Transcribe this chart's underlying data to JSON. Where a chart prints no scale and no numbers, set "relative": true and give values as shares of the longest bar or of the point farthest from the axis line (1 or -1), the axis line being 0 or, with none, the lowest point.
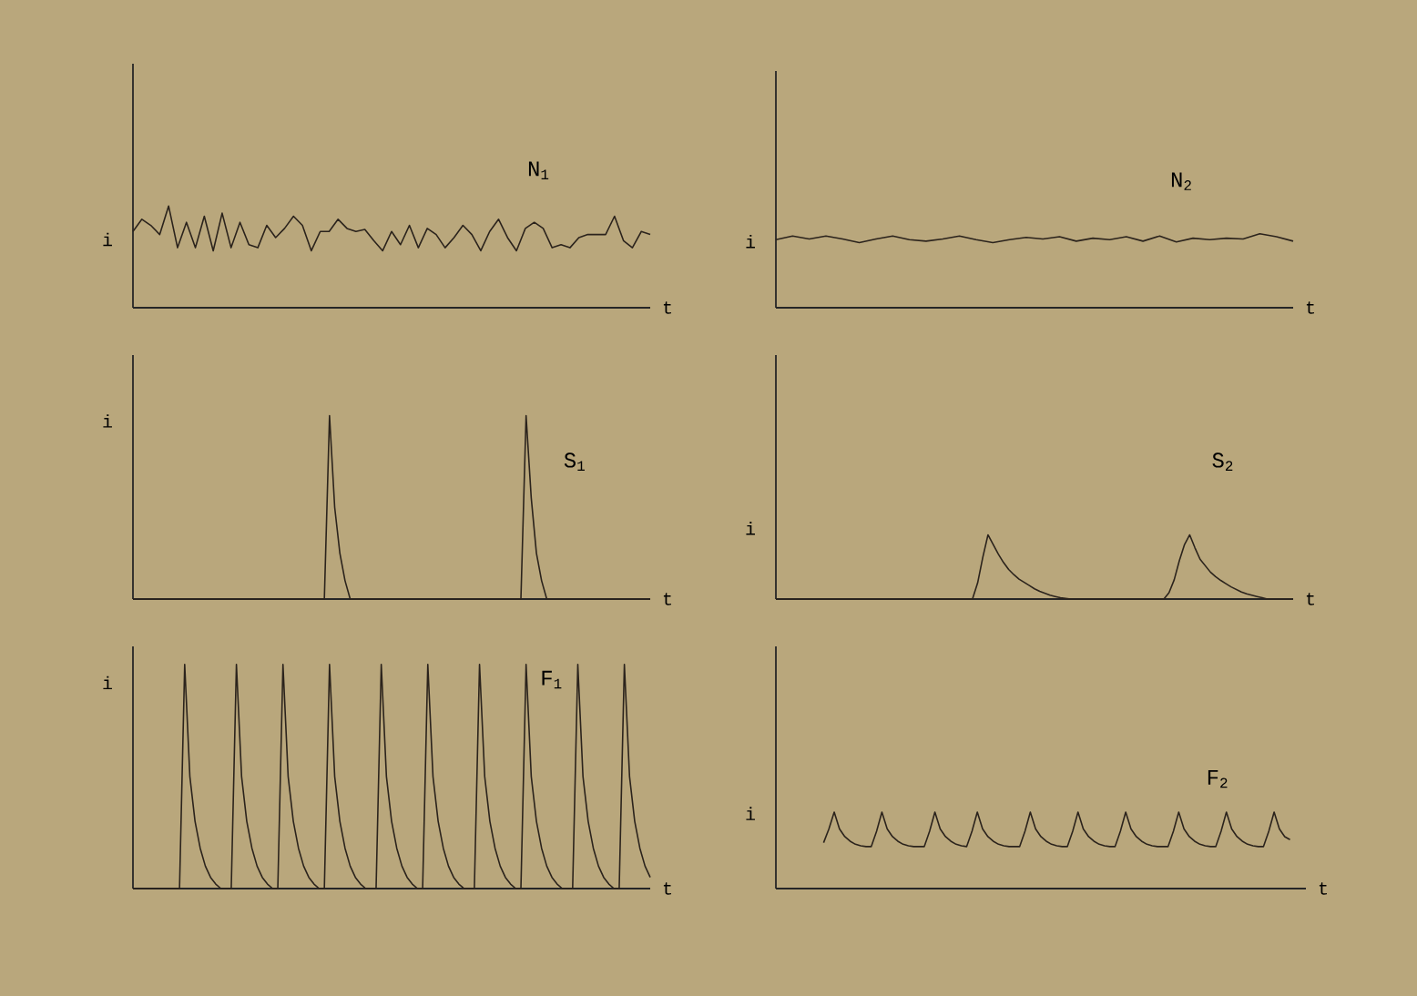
{
  "chart_data": [
    {
      "type": "line",
      "relative": true,
      "tick_labels": false,
      "xlabel": "t",
      "ylabel": "i",
      "categories": [
        null,
        null,
        null,
        null,
        null,
        null,
        null,
        null,
        null,
        null,
        null,
        null,
        null,
        null,
        null,
        null,
        null,
        null,
        null,
        null,
        null,
        null,
        null,
        null,
        null,
        null,
        null,
        null,
        null,
        null,
        null,
        null,
        null,
        null,
        null,
        null,
        null,
        null,
        null,
        null,
        null,
        null,
        null,
        null,
        null,
        null,
        null,
        null,
        null,
        null,
        null,
        null,
        null,
        null,
        null,
        null,
        null,
        null,
        null
      ],
      "series": [
        {
          "name": "N$_{1}$",
          "color": "#2b231c",
          "values": [
            0.75,
            0.87,
            0.81,
            0.72,
            1.0,
            0.59,
            0.84,
            0.59,
            0.9,
            0.56,
            0.93,
            0.59,
            0.84,
            0.62,
            0.59,
            0.81,
            0.69,
            0.78,
            0.9,
            0.81,
            0.56,
            0.75,
            0.75,
            0.87,
            0.78,
            0.75,
            0.77,
            0.66,
            0.56,
            0.75,
            0.62,
            0.81,
            0.59,
            0.78,
            0.72,
            0.59,
            0.69,
            0.81,
            0.72,
            0.56,
            0.75,
            0.87,
            0.69,
            0.56,
            0.78,
            0.84,
            0.78,
            0.59,
            0.62,
            0.59,
            0.69,
            0.72,
            0.72,
            0.72,
            0.9,
            0.66,
            0.59,
            0.75,
            0.72
          ]
        }
      ]
    },
    {
      "type": "line",
      "relative": true,
      "tick_labels": false,
      "xlabel": "t",
      "ylabel": "i",
      "categories": [
        null,
        null,
        null,
        null,
        null,
        null,
        null,
        null,
        null,
        null,
        null,
        null,
        null,
        null,
        null,
        null,
        null,
        null,
        null,
        null,
        null,
        null,
        null,
        null,
        null,
        null,
        null,
        null,
        null,
        null,
        null,
        null
      ],
      "series": [
        {
          "name": "N$_{2}$",
          "color": "#2b231c",
          "values": [
            0.92,
            0.97,
            0.93,
            0.97,
            0.93,
            0.88,
            0.93,
            0.97,
            0.92,
            0.9,
            0.93,
            0.97,
            0.92,
            0.88,
            0.92,
            0.95,
            0.93,
            0.96,
            0.9,
            0.94,
            0.92,
            0.96,
            0.9,
            0.97,
            0.89,
            0.94,
            0.92,
            0.94,
            0.93,
            1.0,
            0.96,
            0.9
          ]
        }
      ]
    },
    {
      "type": "line",
      "relative": true,
      "tick_labels": false,
      "xlabel": "t",
      "ylabel": "i",
      "categories": [
        null,
        null,
        null,
        null,
        null,
        null,
        null,
        null,
        null,
        null,
        null,
        null,
        null,
        null,
        null,
        null,
        null,
        null,
        null,
        null,
        null,
        null,
        null,
        null,
        null,
        null,
        null,
        null,
        null,
        null,
        null,
        null,
        null,
        null,
        null,
        null,
        null,
        null,
        null,
        null,
        null,
        null,
        null,
        null,
        null,
        null,
        null,
        null,
        null,
        null,
        null,
        null,
        null,
        null,
        null,
        null,
        null,
        null,
        null,
        null,
        null,
        null,
        null,
        null,
        null,
        null,
        null,
        null,
        null,
        null,
        null,
        null,
        null,
        null,
        null,
        null,
        null,
        null,
        null,
        null,
        null,
        null,
        null,
        null,
        null,
        null,
        null,
        null,
        null,
        null,
        null,
        null,
        null,
        null,
        null,
        null,
        null,
        null,
        null,
        null,
        null
      ],
      "series": [
        {
          "name": "S$_{1}$",
          "color": "#2b231c",
          "values": [
            0,
            0,
            0,
            0,
            0,
            0,
            0,
            0,
            0,
            0,
            0,
            0,
            0,
            0,
            0,
            0,
            0,
            0,
            0,
            0,
            0,
            0,
            0,
            0,
            0,
            0,
            0,
            0,
            0,
            0,
            0,
            0,
            0,
            0,
            0,
            0,
            0,
            0,
            1,
            0.5,
            0.25,
            0.1,
            0,
            0,
            0,
            0,
            0,
            0,
            0,
            0,
            0,
            0,
            0,
            0,
            0,
            0,
            0,
            0,
            0,
            0,
            0,
            0,
            0,
            0,
            0,
            0,
            0,
            0,
            0,
            0,
            0,
            0,
            0,
            0,
            0,
            0,
            1,
            0.55,
            0.25,
            0.1,
            0,
            0,
            0,
            0,
            0,
            0,
            0,
            0,
            0,
            0,
            0,
            0,
            0,
            0,
            0,
            0,
            0,
            0,
            0,
            0,
            0
          ]
        }
      ]
    },
    {
      "type": "line",
      "relative": true,
      "tick_labels": false,
      "xlabel": "t",
      "ylabel": "i",
      "categories": [
        null,
        null,
        null,
        null,
        null,
        null,
        null,
        null,
        null,
        null,
        null,
        null,
        null,
        null,
        null,
        null,
        null,
        null,
        null,
        null,
        null,
        null,
        null,
        null,
        null,
        null,
        null,
        null,
        null,
        null,
        null,
        null,
        null,
        null,
        null,
        null,
        null,
        null,
        null,
        null,
        null,
        null,
        null,
        null,
        null,
        null,
        null,
        null,
        null,
        null,
        null,
        null,
        null,
        null,
        null,
        null,
        null,
        null,
        null,
        null,
        null,
        null,
        null,
        null,
        null,
        null,
        null,
        null,
        null,
        null,
        null,
        null,
        null,
        null,
        null,
        null,
        null,
        null,
        null,
        null,
        null,
        null,
        null,
        null,
        null,
        null,
        null,
        null,
        null,
        null,
        null,
        null,
        null,
        null,
        null,
        null,
        null,
        null,
        null,
        null,
        null
      ],
      "series": [
        {
          "name": "S$_{2}$",
          "color": "#2b231c",
          "values": [
            0,
            0,
            0,
            0,
            0,
            0,
            0,
            0,
            0,
            0,
            0,
            0,
            0,
            0,
            0,
            0,
            0,
            0,
            0,
            0,
            0,
            0,
            0,
            0,
            0,
            0,
            0,
            0,
            0,
            0,
            0,
            0,
            0,
            0,
            0,
            0,
            0,
            0,
            0,
            0.25,
            0.65,
            1,
            0.85,
            0.7,
            0.57,
            0.46,
            0.38,
            0.31,
            0.26,
            0.21,
            0.16,
            0.12,
            0.09,
            0.06,
            0.04,
            0.02,
            0.01,
            0,
            0,
            0,
            0,
            0,
            0,
            0,
            0,
            0,
            0,
            0,
            0,
            0,
            0,
            0,
            0,
            0,
            0,
            0,
            0.1,
            0.3,
            0.6,
            0.85,
            1,
            0.8,
            0.62,
            0.52,
            0.42,
            0.35,
            0.29,
            0.24,
            0.19,
            0.15,
            0.11,
            0.08,
            0.06,
            0.04,
            0.02,
            0,
            0,
            0,
            0,
            0,
            0
          ]
        }
      ]
    },
    {
      "type": "line",
      "relative": true,
      "tick_labels": false,
      "xlabel": "t",
      "ylabel": "i",
      "categories": [
        null,
        null,
        null,
        null,
        null,
        null,
        null,
        null,
        null,
        null,
        null,
        null,
        null,
        null,
        null,
        null,
        null,
        null,
        null,
        null,
        null,
        null,
        null,
        null,
        null,
        null,
        null,
        null,
        null,
        null,
        null,
        null,
        null,
        null,
        null,
        null,
        null,
        null,
        null,
        null,
        null,
        null,
        null,
        null,
        null,
        null,
        null,
        null,
        null,
        null,
        null,
        null,
        null,
        null,
        null,
        null,
        null,
        null,
        null,
        null,
        null,
        null,
        null,
        null,
        null,
        null,
        null,
        null,
        null,
        null,
        null,
        null,
        null,
        null,
        null,
        null,
        null,
        null,
        null,
        null,
        null,
        null,
        null,
        null,
        null,
        null,
        null,
        null,
        null,
        null,
        null,
        null,
        null,
        null,
        null,
        null,
        null,
        null,
        null,
        null,
        null
      ],
      "series": [
        {
          "name": "F$_{1}$",
          "color": "#2b231c",
          "values": [
            0,
            0,
            0,
            0,
            0,
            0,
            0,
            0,
            0,
            0,
            1,
            0.5,
            0.3,
            0.18,
            0.1,
            0.05,
            0.02,
            0,
            0,
            0,
            1,
            0.5,
            0.3,
            0.18,
            0.1,
            0.05,
            0.02,
            0,
            0,
            1,
            0.5,
            0.3,
            0.18,
            0.1,
            0.05,
            0.02,
            0,
            0,
            1,
            0.5,
            0.3,
            0.18,
            0.1,
            0.05,
            0.02,
            0,
            0,
            0,
            1,
            0.5,
            0.3,
            0.18,
            0.1,
            0.05,
            0.02,
            0,
            0,
            1,
            0.5,
            0.3,
            0.18,
            0.1,
            0.05,
            0.02,
            0,
            0,
            0,
            1,
            0.5,
            0.3,
            0.18,
            0.1,
            0.05,
            0.02,
            0,
            0,
            1,
            0.5,
            0.3,
            0.18,
            0.1,
            0.05,
            0.02,
            0,
            0,
            0,
            1,
            0.5,
            0.3,
            0.18,
            0.1,
            0.05,
            0.02,
            0,
            0,
            1,
            0.5,
            0.3,
            0.18,
            0.1,
            0.05
          ]
        }
      ]
    },
    {
      "type": "line",
      "relative": true,
      "tick_labels": false,
      "xlabel": "t",
      "ylabel": "i",
      "categories": [
        null,
        null,
        null,
        null,
        null,
        null,
        null,
        null,
        null,
        null,
        null,
        null,
        null,
        null,
        null,
        null,
        null,
        null,
        null,
        null,
        null,
        null,
        null,
        null,
        null,
        null,
        null,
        null,
        null,
        null,
        null,
        null,
        null,
        null,
        null,
        null,
        null,
        null,
        null,
        null,
        null,
        null,
        null,
        null,
        null,
        null,
        null,
        null,
        null,
        null,
        null,
        null,
        null,
        null,
        null,
        null,
        null,
        null,
        null,
        null,
        null,
        null,
        null,
        null,
        null,
        null,
        null,
        null,
        null,
        null,
        null,
        null,
        null,
        null,
        null,
        null,
        null,
        null,
        null,
        null,
        null,
        null,
        null,
        null,
        null,
        null,
        null,
        null,
        null,
        null,
        null,
        null,
        null,
        null,
        null,
        null,
        null,
        null,
        null,
        null,
        null
      ],
      "series": [
        {
          "name": "F$_{2}$",
          "color": "#2b231c",
          "values": [
            null,
            null,
            null,
            null,
            null,
            null,
            null,
            null,
            null,
            0.6,
            0.78,
            1,
            0.78,
            0.68,
            0.62,
            0.58,
            0.56,
            0.55,
            0.55,
            0.75,
            1,
            0.78,
            0.68,
            0.62,
            0.58,
            0.56,
            0.55,
            0.55,
            0.55,
            0.75,
            1,
            0.78,
            0.68,
            0.62,
            0.58,
            0.56,
            0.55,
            0.75,
            1,
            0.78,
            0.68,
            0.62,
            0.58,
            0.56,
            0.55,
            0.55,
            0.55,
            0.75,
            1,
            0.78,
            0.68,
            0.62,
            0.58,
            0.56,
            0.55,
            0.55,
            0.75,
            1,
            0.78,
            0.68,
            0.62,
            0.58,
            0.56,
            0.55,
            0.55,
            0.75,
            1,
            0.78,
            0.68,
            0.62,
            0.58,
            0.56,
            0.55,
            0.55,
            0.55,
            0.75,
            1,
            0.78,
            0.68,
            0.62,
            0.58,
            0.56,
            0.55,
            0.55,
            0.75,
            1,
            0.78,
            0.68,
            0.62,
            0.58,
            0.56,
            0.55,
            0.55,
            0.75,
            1,
            0.78,
            0.68,
            0.64,
            null,
            null,
            null
          ]
        }
      ]
    }
  ]
}
